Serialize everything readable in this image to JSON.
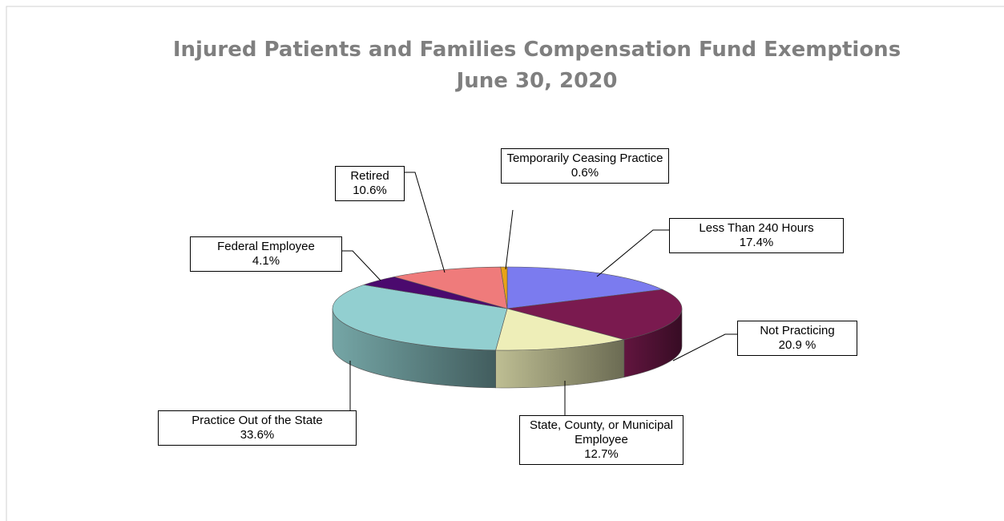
{
  "chart_data": {
    "type": "pie",
    "title": "Injured Patients and Families Compensation Fund Exemptions",
    "subtitle": "June 30, 2020",
    "categories": [
      "Less Than 240 Hours",
      "Not Practicing",
      "State, County, or Municipal Employee",
      "Practice Out of the State",
      "Federal Employee",
      "Retired",
      "Temporarily Ceasing Practice"
    ],
    "values": [
      17.4,
      20.9,
      12.7,
      33.6,
      4.1,
      10.6,
      0.6
    ],
    "value_labels": [
      "17.4%",
      "20.9 %",
      "12.7%",
      "33.6%",
      "4.1%",
      "10.6%",
      "0.6%"
    ],
    "colors": [
      "#7b7bef",
      "#7a1a4f",
      "#eeeeb8",
      "#92cfd0",
      "#4b0a6e",
      "#ef7b7b",
      "#e8a317"
    ]
  }
}
